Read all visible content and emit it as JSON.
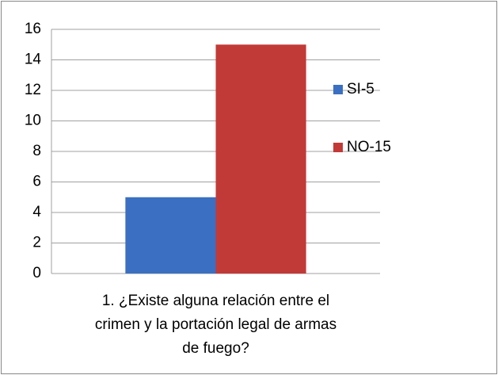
{
  "chart_data": {
    "type": "bar",
    "categories": [
      "1. ¿Existe alguna relación entre el crimen y la portación legal de armas de fuego?"
    ],
    "series": [
      {
        "name": "SI-5",
        "color": "#3b6fc2",
        "values": [
          5
        ]
      },
      {
        "name": "NO-15",
        "color": "#c23a38",
        "values": [
          15
        ]
      }
    ],
    "ylim": [
      0,
      16
    ],
    "yticks": [
      0,
      2,
      4,
      6,
      8,
      10,
      12,
      14,
      16
    ],
    "grid": true,
    "legend": "right"
  }
}
